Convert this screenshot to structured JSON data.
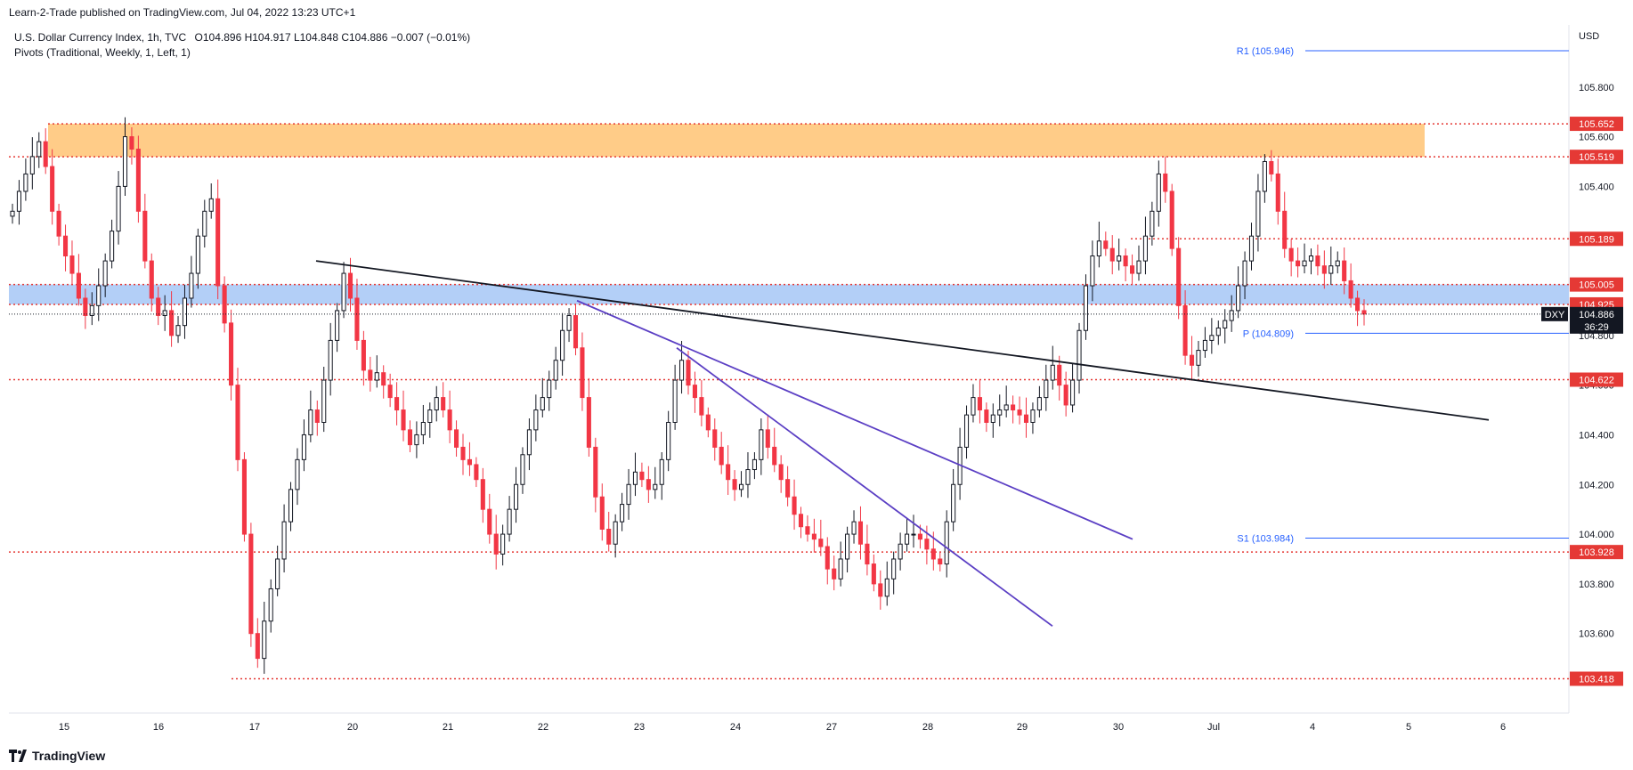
{
  "header": {
    "published": "Learn-2-Trade published on TradingView.com, Jul 04, 2022 13:23 UTC+1"
  },
  "legend": {
    "symbol_line": "U.S. Dollar Currency Index, 1h, TVC",
    "ohlc": "O104.896  H104.917  L104.848  C104.886  −0.007 (−0.01%)",
    "indicator": "Pivots (Traditional, Weekly, 1, Left, 1)"
  },
  "footer": {
    "brand": "TradingView"
  },
  "colors": {
    "up_candle": "#131722",
    "down_candle": "#f23645",
    "resistance_zone": "#ffcc88",
    "support_zone": "#b3cff7",
    "level_line": "#e53935",
    "trendline_main": "#131722",
    "trendline_purple": "#5b3fc4",
    "pivot": "#2962ff",
    "price_badge": "#131722"
  },
  "chart_data": {
    "type": "candlestick",
    "title": "U.S. Dollar Currency Index, 1h, TVC",
    "ylabel": "USD",
    "ylim": [
      103.28,
      106.05
    ],
    "y_ticks": [
      103.6,
      103.8,
      104.0,
      104.2,
      104.4,
      104.6,
      104.8,
      105.2,
      105.4,
      105.6,
      105.8
    ],
    "x_ticks": [
      "15",
      "16",
      "17",
      "20",
      "21",
      "22",
      "23",
      "24",
      "27",
      "28",
      "29",
      "30",
      "Jul",
      "4",
      "5",
      "6"
    ],
    "ohlc_last": {
      "open": 104.896,
      "high": 104.917,
      "low": 104.848,
      "close": 104.886,
      "change": -0.007,
      "change_pct": -0.01
    },
    "current_price": {
      "symbol": "DXY",
      "price": "104.886",
      "countdown": "36:29"
    },
    "horizontal_levels": [
      "105.652",
      "105.519",
      "105.189",
      "105.005",
      "104.925",
      "104.622",
      "103.928",
      "103.418"
    ],
    "zones": [
      {
        "name": "resistance",
        "low": 105.519,
        "high": 105.652
      },
      {
        "name": "support",
        "low": 104.925,
        "high": 105.005
      }
    ],
    "pivots": [
      {
        "label": "R1 (105.946)",
        "value": 105.946
      },
      {
        "label": "P (104.809)",
        "value": 104.809
      },
      {
        "label": "S1 (103.984)",
        "value": 103.984
      }
    ],
    "trendlines": [
      {
        "name": "main-descending",
        "points": [
          [
            "Jun 17 14:00",
            105.1
          ],
          [
            "Jul 6",
            104.46
          ]
        ]
      },
      {
        "name": "purple-1",
        "points": [
          [
            "Jun 22 12:00",
            104.94
          ],
          [
            "Jun 30",
            103.98
          ]
        ]
      },
      {
        "name": "purple-2",
        "points": [
          [
            "Jun 23 07:00",
            104.75
          ],
          [
            "Jun 29 06:00",
            103.63
          ]
        ]
      }
    ],
    "candles_close": [
      105.3,
      105.38,
      105.45,
      105.52,
      105.58,
      105.48,
      105.3,
      105.2,
      105.12,
      105.05,
      104.95,
      104.88,
      104.92,
      105.0,
      105.1,
      105.22,
      105.4,
      105.6,
      105.55,
      105.3,
      105.1,
      104.95,
      104.88,
      104.9,
      104.8,
      104.84,
      104.95,
      105.05,
      105.2,
      105.3,
      105.35,
      105.0,
      104.85,
      104.6,
      104.3,
      104.0,
      103.6,
      103.5,
      103.65,
      103.78,
      103.9,
      104.05,
      104.18,
      104.3,
      104.4,
      104.5,
      104.45,
      104.62,
      104.78,
      104.9,
      105.05,
      104.95,
      104.78,
      104.66,
      104.62,
      104.65,
      104.6,
      104.55,
      104.5,
      104.42,
      104.36,
      104.4,
      104.45,
      104.5,
      104.55,
      104.5,
      104.42,
      104.35,
      104.3,
      104.28,
      104.22,
      104.1,
      104.0,
      103.92,
      104.0,
      104.1,
      104.2,
      104.32,
      104.42,
      104.5,
      104.55,
      104.62,
      104.7,
      104.82,
      104.88,
      104.75,
      104.55,
      104.35,
      104.15,
      104.02,
      103.96,
      104.05,
      104.12,
      104.2,
      104.25,
      104.22,
      104.18,
      104.2,
      104.3,
      104.45,
      104.62,
      104.7,
      104.6,
      104.55,
      104.48,
      104.42,
      104.35,
      104.28,
      104.22,
      104.18,
      104.2,
      104.26,
      104.3,
      104.42,
      104.35,
      104.28,
      104.22,
      104.15,
      104.08,
      104.03,
      104.0,
      103.98,
      103.95,
      103.86,
      103.82,
      103.9,
      104.0,
      104.05,
      103.96,
      103.88,
      103.8,
      103.75,
      103.82,
      103.9,
      103.96,
      104.0,
      104.0,
      103.98,
      103.94,
      103.9,
      103.88,
      104.05,
      104.2,
      104.35,
      104.48,
      104.55,
      104.5,
      104.45,
      104.48,
      104.5,
      104.52,
      104.5,
      104.48,
      104.45,
      104.5,
      104.55,
      104.62,
      104.68,
      104.6,
      104.52,
      104.62,
      104.82,
      105.0,
      105.12,
      105.18,
      105.15,
      105.1,
      105.12,
      105.08,
      105.05,
      105.1,
      105.2,
      105.3,
      105.45,
      105.38,
      105.15,
      104.92,
      104.72,
      104.68,
      104.74,
      104.78,
      104.8,
      104.83,
      104.86,
      104.9,
      105.0,
      105.1,
      105.2,
      105.38,
      105.5,
      105.45,
      105.3,
      105.15,
      105.1,
      105.08,
      105.1,
      105.12,
      105.08,
      105.05,
      105.08,
      105.1,
      105.02,
      104.95,
      104.9,
      104.886
    ]
  }
}
